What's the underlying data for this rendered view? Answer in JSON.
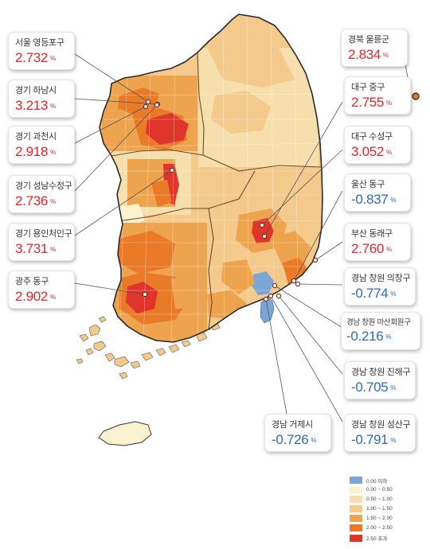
{
  "legend": [
    {
      "label": "0.00 이하",
      "color": "#7aa6d6"
    },
    {
      "label": "0.00 ~ 0.50",
      "color": "#fbf3cf"
    },
    {
      "label": "0.50 ~ 1.00",
      "color": "#f6dfad"
    },
    {
      "label": "1.00 ~ 1.50",
      "color": "#f3c98c"
    },
    {
      "label": "1.50 ~ 2.00",
      "color": "#eea34e"
    },
    {
      "label": "2.00 ~ 2.50",
      "color": "#e87a28"
    },
    {
      "label": "2.50 초과",
      "color": "#e0352a"
    }
  ],
  "pct_unit": "%",
  "callouts": [
    {
      "id": "seoul-yeongdeungpo",
      "name": "서울 영등포구",
      "value": "2.732",
      "sign": "pos"
    },
    {
      "id": "gyeonggi-hanam",
      "name": "경기 하남시",
      "value": "3.213",
      "sign": "pos"
    },
    {
      "id": "gyeonggi-gwacheon",
      "name": "경기 과천시",
      "value": "2.918",
      "sign": "pos"
    },
    {
      "id": "gyeonggi-seongnam-sujeong",
      "name": "경기 성남수정구",
      "value": "2.736",
      "sign": "pos"
    },
    {
      "id": "gyeonggi-yongin-cheoin",
      "name": "경기 용인처인구",
      "value": "3.731",
      "sign": "pos"
    },
    {
      "id": "gwangju-dong",
      "name": "광주 동구",
      "value": "2.902",
      "sign": "pos"
    },
    {
      "id": "gyeongbuk-ulleung",
      "name": "경북 울릉군",
      "value": "2.834",
      "sign": "pos"
    },
    {
      "id": "daegu-jung",
      "name": "대구 중구",
      "value": "2.755",
      "sign": "pos"
    },
    {
      "id": "daegu-suseong",
      "name": "대구 수성구",
      "value": "3.052",
      "sign": "pos"
    },
    {
      "id": "ulsan-dong",
      "name": "울산 동구",
      "value": "-0.837",
      "sign": "neg"
    },
    {
      "id": "busan-dongnae",
      "name": "부산 동래구",
      "value": "2.760",
      "sign": "pos"
    },
    {
      "id": "changwon-uichang",
      "name": "경남 창원 의창구",
      "value": "-0.774",
      "sign": "neg"
    },
    {
      "id": "changwon-masanhoewon",
      "name": "경남 창원 마산회원구",
      "value": "-0.216",
      "sign": "neg"
    },
    {
      "id": "changwon-jinhae",
      "name": "경남 창원 진해구",
      "value": "-0.705",
      "sign": "neg"
    },
    {
      "id": "geoje",
      "name": "경남 거제시",
      "value": "-0.726",
      "sign": "neg"
    },
    {
      "id": "changwon-seongsan",
      "name": "경남 창원 성산구",
      "value": "-0.791",
      "sign": "neg"
    }
  ]
}
